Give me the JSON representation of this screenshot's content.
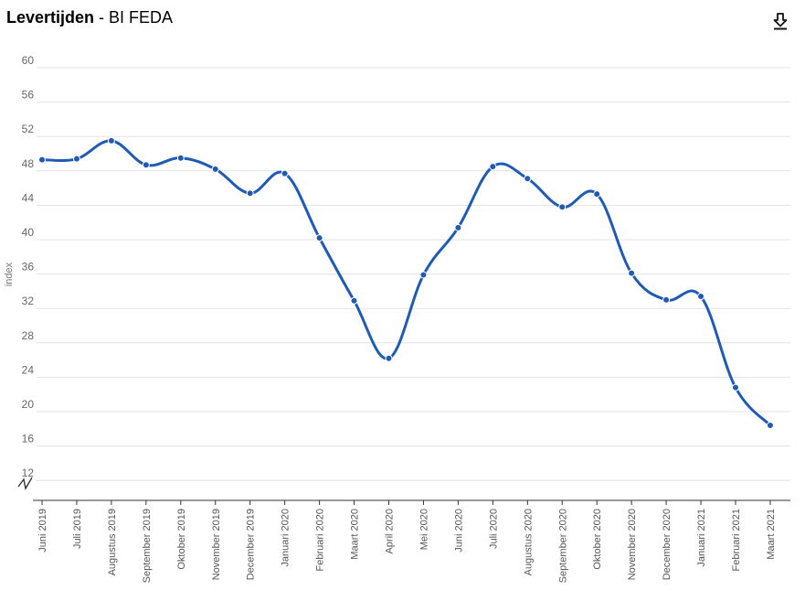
{
  "header": {
    "title_bold": "Levertijden",
    "title_separator": " - ",
    "title_rest": "BI FEDA",
    "download_icon": "download-icon"
  },
  "chart_data": {
    "type": "line",
    "title": "Levertijden - BI FEDA",
    "xlabel": "",
    "ylabel": "index",
    "ylim": [
      10,
      60
    ],
    "yticks": [
      12,
      16,
      20,
      24,
      28,
      32,
      36,
      40,
      44,
      48,
      52,
      56,
      60
    ],
    "axis_break": true,
    "grid": true,
    "line_color": "#1f5bb5",
    "categories": [
      "Juni 2019",
      "Juli 2019",
      "Augustus 2019",
      "September 2019",
      "Oktober 2019",
      "November 2019",
      "December 2019",
      "Januari 2020",
      "Februari 2020",
      "Maart 2020",
      "April 2020",
      "Mei 2020",
      "Juni 2020",
      "Juli 2020",
      "Augustus 2020",
      "September 2020",
      "Oktober 2020",
      "November 2020",
      "December 2020",
      "Januari 2021",
      "Februari 2021",
      "Maart 2021"
    ],
    "series": [
      {
        "values": [
          49.3,
          49.4,
          51.5,
          48.7,
          49.5,
          48.2,
          45.4,
          47.7,
          40.2,
          32.9,
          26.2,
          35.9,
          41.4,
          48.5,
          47.1,
          43.8,
          45.3,
          36.1,
          33.0,
          33.4,
          22.8,
          18.4
        ]
      }
    ]
  }
}
